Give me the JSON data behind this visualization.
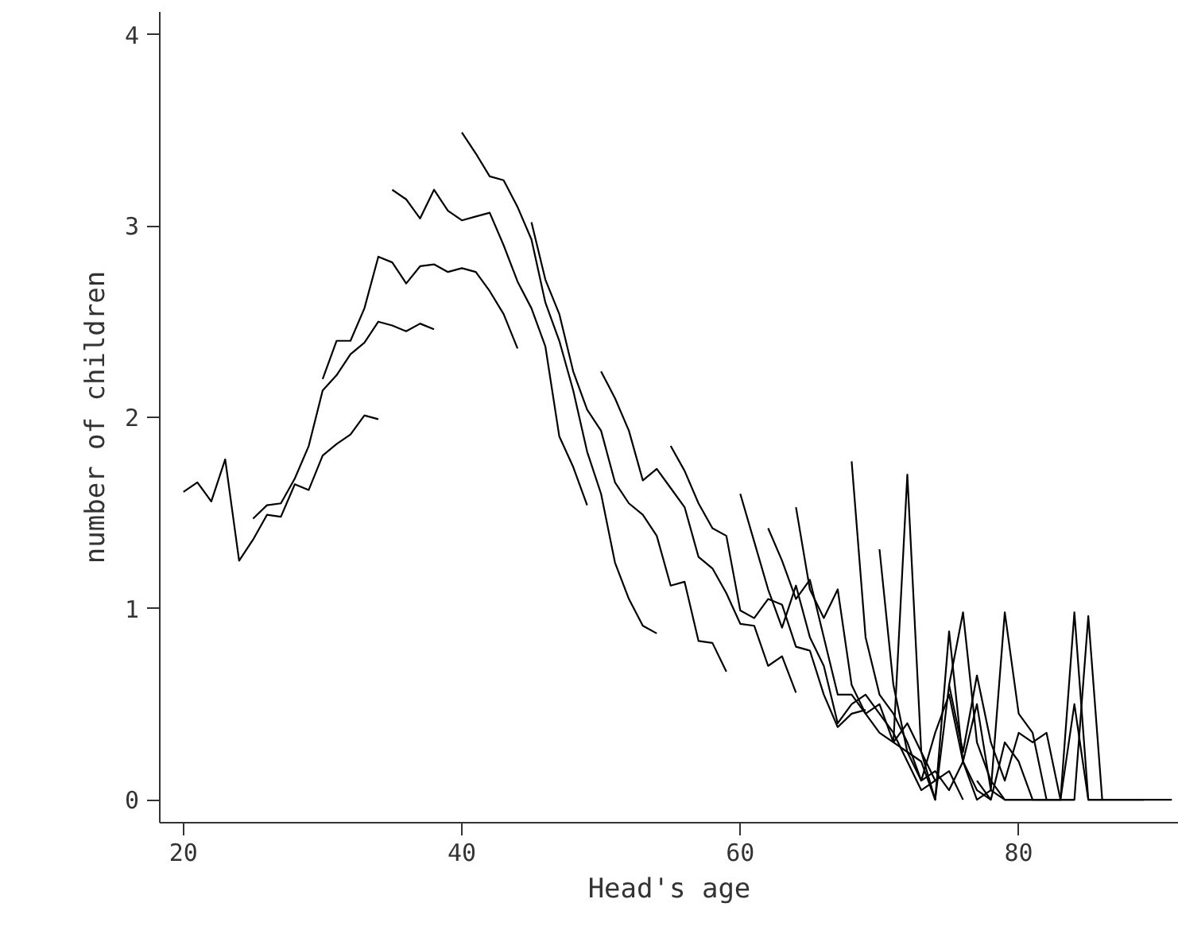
{
  "chart_data": {
    "type": "line",
    "xlabel": "Head's age",
    "ylabel": "number of children",
    "xlim": [
      18.3,
      91.5
    ],
    "ylim": [
      -0.12,
      4.12
    ],
    "xticks": [
      20,
      40,
      60,
      80
    ],
    "yticks": [
      0,
      1,
      2,
      3,
      4
    ],
    "grid": false,
    "marker": "none",
    "line_style": "solid",
    "series": [
      {
        "color": "#000000",
        "x": [
          20,
          21,
          22,
          23,
          24,
          25,
          26,
          27,
          28,
          29,
          30,
          31,
          32,
          33,
          34
        ],
        "values": [
          1.61,
          1.66,
          1.56,
          1.78,
          1.25,
          1.36,
          1.49,
          1.48,
          1.65,
          1.62,
          1.8,
          1.86,
          1.91,
          2.01,
          1.99
        ]
      },
      {
        "color": "#000000",
        "x": [
          25,
          26,
          27,
          28,
          29,
          30,
          31,
          32,
          33,
          34,
          35,
          36,
          37,
          38
        ],
        "values": [
          1.47,
          1.54,
          1.55,
          1.68,
          1.85,
          2.14,
          2.22,
          2.33,
          2.39,
          2.5,
          2.48,
          2.45,
          2.49,
          2.46
        ]
      },
      {
        "color": "#000000",
        "x": [
          30,
          31,
          32,
          33,
          34,
          35,
          36,
          37,
          38,
          39,
          40,
          41,
          42,
          43,
          44
        ],
        "values": [
          2.2,
          2.4,
          2.4,
          2.57,
          2.84,
          2.81,
          2.7,
          2.79,
          2.8,
          2.76,
          2.78,
          2.76,
          2.66,
          2.54,
          2.36
        ]
      },
      {
        "color": "#000000",
        "x": [
          35,
          36,
          37,
          38,
          39,
          40,
          41,
          42,
          43,
          44,
          45,
          46,
          47,
          48,
          49
        ],
        "values": [
          3.19,
          3.14,
          3.04,
          3.19,
          3.08,
          3.03,
          3.05,
          3.07,
          2.9,
          2.71,
          2.57,
          2.37,
          1.9,
          1.74,
          1.54
        ]
      },
      {
        "color": "#000000",
        "x": [
          40,
          41,
          42,
          43,
          44,
          45,
          46,
          47,
          48,
          49,
          50,
          51,
          52,
          53,
          54
        ],
        "values": [
          3.49,
          3.38,
          3.26,
          3.24,
          3.1,
          2.93,
          2.6,
          2.4,
          2.14,
          1.82,
          1.6,
          1.24,
          1.05,
          0.91,
          0.87
        ]
      },
      {
        "color": "#000000",
        "x": [
          45,
          46,
          47,
          48,
          49,
          50,
          51,
          52,
          53,
          54,
          55,
          56,
          57,
          58,
          59
        ],
        "values": [
          3.02,
          2.72,
          2.54,
          2.24,
          2.04,
          1.93,
          1.66,
          1.55,
          1.49,
          1.38,
          1.12,
          1.14,
          0.83,
          0.82,
          0.67
        ]
      },
      {
        "color": "#000000",
        "x": [
          50,
          51,
          52,
          53,
          54,
          55,
          56,
          57,
          58,
          59,
          60,
          61,
          62,
          63,
          64
        ],
        "values": [
          2.24,
          2.1,
          1.93,
          1.67,
          1.73,
          1.63,
          1.53,
          1.27,
          1.21,
          1.08,
          0.92,
          0.91,
          0.7,
          0.75,
          0.56
        ]
      },
      {
        "color": "#000000",
        "x": [
          55,
          56,
          57,
          58,
          59,
          60,
          61,
          62,
          63,
          64,
          65,
          66,
          67,
          68,
          69
        ],
        "values": [
          1.85,
          1.72,
          1.55,
          1.42,
          1.38,
          0.99,
          0.95,
          1.05,
          1.02,
          0.8,
          0.78,
          0.55,
          0.38,
          0.45,
          0.47
        ]
      },
      {
        "color": "#000000",
        "x": [
          60,
          61,
          62,
          63,
          64,
          65,
          66,
          67,
          68,
          69,
          70,
          71,
          72,
          73,
          74
        ],
        "values": [
          1.6,
          1.35,
          1.1,
          0.9,
          1.12,
          0.85,
          0.7,
          0.4,
          0.5,
          0.55,
          0.45,
          0.35,
          0.2,
          0.05,
          0.1
        ]
      },
      {
        "color": "#000000",
        "x": [
          62,
          63,
          64,
          65,
          66,
          67,
          68,
          69,
          70,
          71,
          72,
          73,
          74,
          75,
          76
        ],
        "values": [
          1.42,
          1.25,
          1.05,
          1.15,
          0.85,
          0.55,
          0.55,
          0.45,
          0.35,
          0.3,
          0.4,
          0.25,
          0.1,
          0.15,
          0.0
        ]
      },
      {
        "color": "#000000",
        "x": [
          64,
          65,
          66,
          67,
          68,
          69,
          70,
          71,
          72,
          73,
          74,
          75,
          76,
          77,
          78
        ],
        "values": [
          1.53,
          1.1,
          0.95,
          1.1,
          0.6,
          0.45,
          0.5,
          0.3,
          0.25,
          0.1,
          0.35,
          0.55,
          0.2,
          0.05,
          0.0
        ]
      },
      {
        "color": "#000000",
        "x": [
          68,
          69,
          70,
          71,
          72,
          73,
          74,
          75,
          76,
          77,
          78,
          79,
          80,
          81,
          82
        ],
        "values": [
          1.77,
          0.85,
          0.55,
          0.45,
          0.3,
          0.1,
          0.15,
          0.05,
          0.2,
          0.0,
          0.05,
          0.0,
          0.0,
          0.0,
          0.0
        ]
      },
      {
        "color": "#000000",
        "x": [
          70,
          71,
          72,
          73,
          74,
          75,
          76,
          77,
          78,
          79,
          80,
          81,
          82,
          83,
          84
        ],
        "values": [
          1.31,
          0.6,
          0.25,
          0.2,
          0.0,
          0.6,
          0.98,
          0.3,
          0.1,
          0.0,
          0.0,
          0.0,
          0.0,
          0.0,
          0.0
        ]
      },
      {
        "color": "#000000",
        "x": [
          71,
          72,
          73,
          74,
          75,
          76,
          77,
          78,
          79,
          80,
          81,
          82,
          83,
          84,
          85,
          86
        ],
        "values": [
          0.3,
          1.7,
          0.25,
          0.0,
          0.88,
          0.2,
          0.5,
          0.05,
          0.98,
          0.45,
          0.35,
          0.0,
          0.0,
          0.98,
          0.0,
          0.0
        ]
      },
      {
        "color": "#000000",
        "x": [
          75,
          76,
          77,
          78,
          79,
          80,
          81,
          82,
          83,
          84,
          85,
          86,
          87,
          88,
          89
        ],
        "values": [
          0.6,
          0.25,
          0.65,
          0.3,
          0.1,
          0.35,
          0.3,
          0.35,
          0.0,
          0.0,
          0.96,
          0.0,
          0.0,
          0.0,
          0.0
        ]
      },
      {
        "color": "#000000",
        "x": [
          77,
          78,
          79,
          80,
          81,
          82,
          83,
          84,
          85,
          86,
          87,
          88,
          89,
          90,
          91
        ],
        "values": [
          0.1,
          0.0,
          0.3,
          0.2,
          0.0,
          0.0,
          0.0,
          0.5,
          0.0,
          0.0,
          0.0,
          0.0,
          0.0,
          0.0,
          0.0
        ]
      }
    ]
  }
}
